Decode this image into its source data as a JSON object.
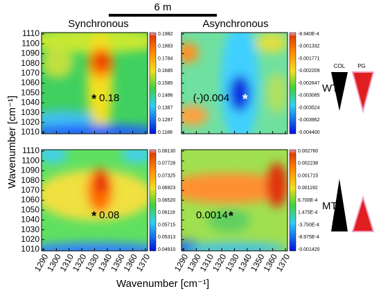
{
  "header": {
    "title": "6 m"
  },
  "columns": [
    "Synchronous",
    "Asynchronous"
  ],
  "x_axis": {
    "label": "Wavenumber [cm⁻¹]",
    "ticks": [
      1290,
      1300,
      1310,
      1320,
      1330,
      1340,
      1350,
      1360,
      1370
    ]
  },
  "y_axis": {
    "label": "Wavenumber [cm⁻¹]",
    "ticks": [
      1010,
      1020,
      1030,
      1040,
      1050,
      1060,
      1070,
      1080,
      1090,
      1100,
      1110
    ]
  },
  "rows": [
    {
      "label": "WT"
    },
    {
      "label": "MT"
    }
  ],
  "legend": {
    "items": [
      "COL",
      "PG"
    ]
  },
  "panels": [
    {
      "marker": "*",
      "annotation": "0.18",
      "colorbar": [
        "0.1982",
        "0.1883",
        "0.1784",
        "0.1685",
        "0.1585",
        "0.1486",
        "0.1387",
        "0.1287",
        "0.1188"
      ]
    },
    {
      "marker": "*",
      "annotation": "(-)0.004",
      "colorbar": [
        "-8.940E-4",
        "-0.001332",
        "-0.001771",
        "-0.002209",
        "-0.002647",
        "-0.003085",
        "-0.003524",
        "-0.003962",
        "-0.004400"
      ]
    },
    {
      "marker": "*",
      "annotation": "0.08",
      "colorbar": [
        "0.08130",
        "0.07728",
        "0.07325",
        "0.06923",
        "0.06520",
        "0.06118",
        "0.05715",
        "0.05313",
        "0.04910"
      ]
    },
    {
      "marker": "*",
      "annotation": "0.0014",
      "colorbar": [
        "0.002760",
        "0.002238",
        "0.001715",
        "0.001192",
        "6.700E-4",
        "1.475E-4",
        "-3.750E-4",
        "-8.975E-4",
        "-0.001420"
      ]
    }
  ]
}
